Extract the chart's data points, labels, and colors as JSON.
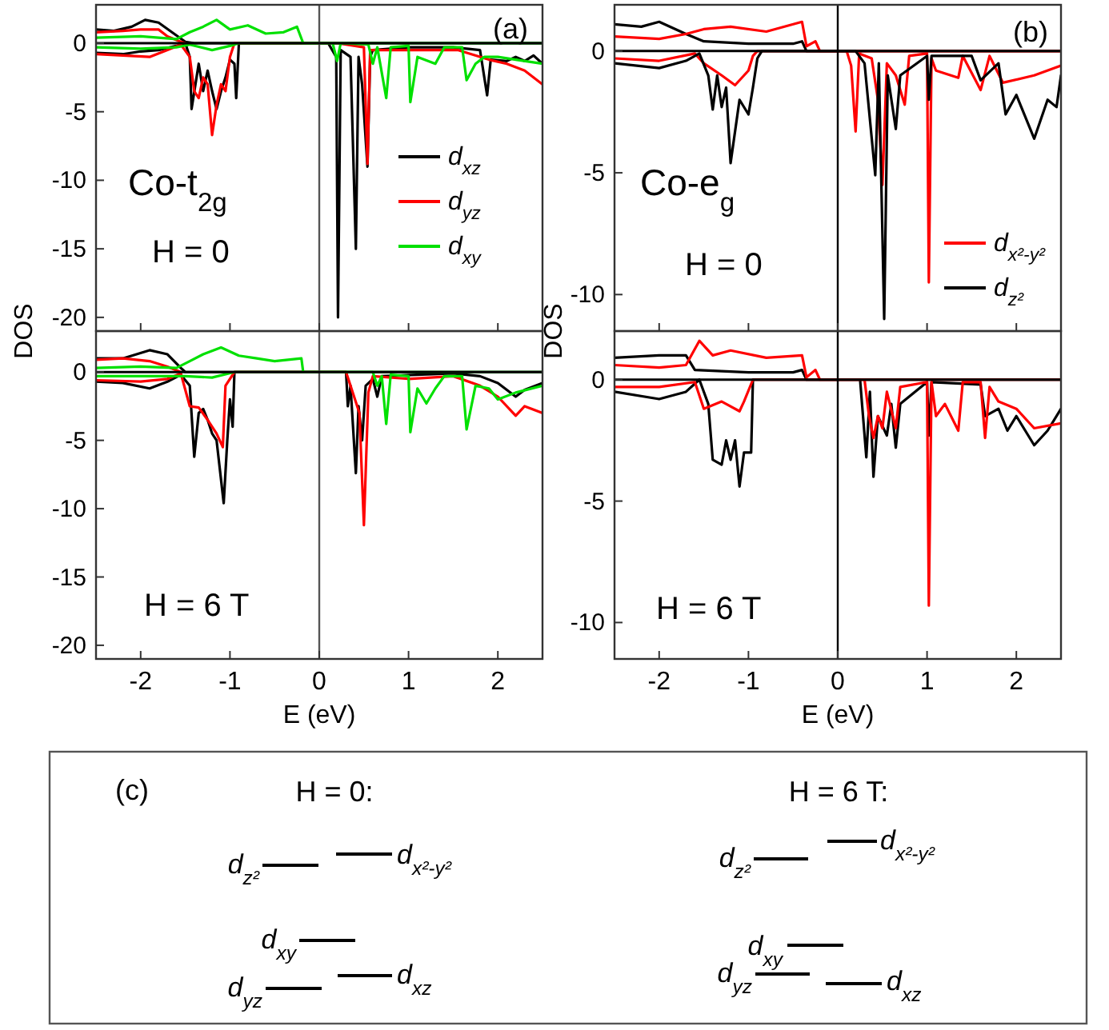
{
  "chart_data": [
    {
      "type": "line",
      "ylabel": "DOS",
      "xlim": [
        -2.5,
        2.5
      ],
      "ylim": [
        -21,
        2.8
      ],
      "xticks": [
        -2,
        -1,
        0,
        1,
        2
      ],
      "yticks": [
        -20,
        -15,
        -10,
        -5,
        0
      ],
      "tick_labels": "y",
      "legend": "right",
      "annotations": [
        "(a)",
        "Co-t$_{2g}$",
        "H = 0"
      ],
      "ref_lines": [
        {
          "axis": "x",
          "value": 0,
          "color": "#555555"
        },
        {
          "axis": "y",
          "value": 0,
          "color": "#000000"
        }
      ],
      "series": [
        {
          "color": "#000000",
          "x": [
            -2.5,
            -2.3,
            -2.1,
            -1.95,
            -1.8,
            -1.65,
            -1.5,
            -1.4,
            2.5
          ],
          "values": [
            1.0,
            0.9,
            1.2,
            1.7,
            1.5,
            0.8,
            0.1,
            0,
            0
          ]
        },
        {
          "name": "d$_{xz}$",
          "color": "#000000",
          "x": [
            -2.5,
            -2.2,
            -2.0,
            -1.8,
            -1.6,
            -1.5,
            -1.45,
            -1.43,
            -1.35,
            -1.3,
            -1.25,
            -1.2,
            -1.15,
            -1.1,
            -1.05,
            -1.0,
            -0.95,
            -0.93,
            -0.9,
            0.1,
            0.19,
            0.21,
            0.24,
            0.35,
            0.41,
            0.44,
            0.48,
            0.54,
            0.57,
            0.6,
            1.0,
            1.5,
            1.8,
            1.88,
            1.92,
            2.1,
            2.2,
            2.3,
            2.4,
            2.5
          ],
          "values": [
            -0.7,
            -0.8,
            -0.6,
            -0.5,
            -0.2,
            0,
            -1,
            -4.8,
            -1.5,
            -3.5,
            -2,
            -3.5,
            -4.8,
            -3.5,
            -2.5,
            -1.2,
            -1.5,
            -4,
            0,
            0,
            -1,
            -20,
            -0.5,
            -1,
            -15,
            -1,
            -3,
            -9,
            -1,
            -0.5,
            -0.3,
            -0.3,
            -0.5,
            -3.8,
            -1.2,
            -1.3,
            -1.0,
            -1.3,
            -0.9,
            -1.5
          ]
        },
        {
          "color": "#ff0000",
          "x": [
            -2.5,
            -2.2,
            -2.0,
            -1.8,
            -1.7,
            -1.55,
            -1.5
          ],
          "values": [
            0.8,
            0.9,
            1.0,
            1.0,
            0.5,
            0.1,
            0
          ]
        },
        {
          "name": "d$_{yz}$",
          "color": "#ff0000",
          "x": [
            -2.5,
            -2.2,
            -1.9,
            -1.7,
            -1.55,
            -1.45,
            -1.4,
            -1.35,
            -1.3,
            -1.25,
            -1.2,
            -1.15,
            -1.1,
            -1.05,
            -1.0,
            -0.95,
            0.2,
            0.5,
            0.54,
            0.57,
            0.7,
            1.0,
            1.55,
            1.9,
            2.1,
            2.3,
            2.5
          ],
          "values": [
            -0.8,
            -0.9,
            -1.0,
            -0.5,
            -0.1,
            -1,
            -3.5,
            -4,
            -2.5,
            -3,
            -6.7,
            -4.5,
            -3,
            -3.5,
            -1,
            0,
            0,
            -0.3,
            -8.8,
            -0.5,
            -0.5,
            -0.5,
            -0.5,
            -1.2,
            -1.5,
            -2.0,
            -3.0
          ]
        },
        {
          "color": "#00e000",
          "x": [
            -2.5,
            -2.0,
            -1.6,
            -1.45,
            -1.3,
            -1.15,
            -1.0,
            -0.8,
            -0.6,
            -0.4,
            -0.25,
            -0.18,
            2.5
          ],
          "values": [
            0.4,
            0.5,
            0.3,
            0.8,
            1.2,
            1.7,
            1.0,
            1.3,
            0.7,
            0.8,
            1.2,
            0,
            0
          ]
        },
        {
          "name": "d$_{xy}$",
          "color": "#00e000",
          "x": [
            -2.5,
            -2.0,
            -1.6,
            -1.45,
            -1.2,
            -1.0,
            -0.9,
            0.15,
            0.2,
            0.24,
            0.55,
            0.6,
            0.65,
            0.75,
            0.8,
            1.0,
            1.02,
            1.1,
            1.3,
            1.4,
            1.6,
            1.65,
            1.75,
            1.85,
            2.0,
            2.2,
            2.5
          ],
          "values": [
            -0.3,
            -0.4,
            -0.3,
            -0.1,
            -0.5,
            -0.2,
            0,
            0,
            -1.3,
            0,
            -0.1,
            -1.5,
            -0.3,
            -4,
            -0.3,
            -0.2,
            -4.3,
            -1,
            -1.5,
            -0.3,
            -0.3,
            -2.7,
            -1.5,
            -1,
            -1,
            -1.2,
            -1.5
          ]
        }
      ]
    },
    {
      "type": "line",
      "xlabel": "E (eV)",
      "xlim": [
        -2.5,
        2.5
      ],
      "ylim": [
        -21,
        3
      ],
      "xticks": [
        -2,
        -1,
        0,
        1,
        2
      ],
      "yticks": [
        -20,
        -15,
        -10,
        -5,
        0
      ],
      "annotations": [
        "H = 6 T"
      ],
      "ref_lines": [
        {
          "axis": "x",
          "value": 0,
          "color": "#555555"
        },
        {
          "axis": "y",
          "value": 0,
          "color": "#000000"
        }
      ],
      "series": [
        {
          "color": "#000000",
          "x": [
            -2.5,
            -2.2,
            -1.9,
            -1.7,
            -1.55,
            -1.5,
            2.5
          ],
          "values": [
            1.0,
            1.0,
            1.6,
            1.3,
            0.3,
            0,
            0
          ]
        },
        {
          "color": "#000000",
          "x": [
            -2.5,
            -2.2,
            -1.9,
            -1.7,
            -1.55,
            -1.45,
            -1.4,
            -1.35,
            -1.3,
            -1.25,
            -1.2,
            -1.15,
            -1.07,
            -1.03,
            -1.0,
            -0.97,
            -0.95,
            0.3,
            0.32,
            0.35,
            0.41,
            0.44,
            0.48,
            0.52,
            0.6,
            0.65,
            0.7,
            1.5,
            1.8,
            2.0,
            2.2,
            2.3,
            2.5
          ],
          "values": [
            -0.7,
            -0.8,
            -1.2,
            -0.7,
            -0.2,
            -1,
            -6.2,
            -3,
            -2.7,
            -3.5,
            -4.5,
            -5,
            -9.6,
            -5,
            -2,
            -4,
            0,
            0,
            -2.5,
            -1,
            -7.4,
            -2.5,
            -5,
            -1,
            -0.5,
            -1.8,
            -0.3,
            -0.1,
            -0.3,
            -0.8,
            -1.8,
            -1.3,
            -0.8
          ]
        },
        {
          "color": "#ff0000",
          "x": [
            -2.5,
            -2.2,
            -1.9,
            -1.7,
            -1.55
          ],
          "values": [
            0.9,
            1.0,
            0.8,
            0.4,
            0
          ]
        },
        {
          "color": "#ff0000",
          "x": [
            -2.5,
            -2.0,
            -1.7,
            -1.55,
            -1.45,
            -1.35,
            -1.25,
            -1.15,
            -1.08,
            -1.05,
            -0.95,
            0.3,
            0.35,
            0.45,
            0.5,
            0.55,
            0.6,
            1.0,
            1.5,
            1.8,
            2.0,
            2.2,
            2.3,
            2.5
          ],
          "values": [
            -0.6,
            -0.7,
            -0.5,
            -0.1,
            -2.5,
            -2.6,
            -3.5,
            -4.5,
            -5.5,
            -1,
            0,
            0,
            -1,
            -3,
            -11.2,
            -1.5,
            -0.3,
            -0.5,
            -0.3,
            -1,
            -1.8,
            -3.2,
            -2.5,
            -3.0
          ]
        },
        {
          "color": "#00e000",
          "x": [
            -2.5,
            -2.0,
            -1.6,
            -1.45,
            -1.3,
            -1.1,
            -0.9,
            -0.7,
            -0.5,
            -0.2,
            -0.18,
            2.5
          ],
          "values": [
            0.3,
            0.4,
            0.3,
            0.8,
            1.3,
            1.8,
            1.2,
            1.0,
            0.8,
            1.0,
            0,
            0
          ]
        },
        {
          "color": "#00e000",
          "x": [
            -2.5,
            -2.0,
            -1.5,
            -1.2,
            -0.95,
            0.6,
            0.65,
            0.7,
            0.75,
            0.8,
            1.0,
            1.02,
            1.1,
            1.2,
            1.3,
            1.4,
            1.6,
            1.65,
            1.75,
            1.9,
            2.0,
            2.2,
            2.5
          ],
          "values": [
            -0.3,
            -0.3,
            -0.3,
            -0.4,
            0,
            0,
            -1,
            -0.3,
            -3.8,
            -0.2,
            -0.3,
            -4.4,
            -1.2,
            -2.3,
            -1.2,
            -0.3,
            -0.3,
            -4.2,
            -1,
            -1.2,
            -2,
            -1.5,
            -1.0
          ]
        }
      ]
    },
    {
      "type": "line",
      "ylabel": "DOS",
      "xlim": [
        -2.5,
        2.5
      ],
      "ylim": [
        -11.5,
        1.9
      ],
      "xticks": [
        -2,
        -1,
        0,
        1,
        2
      ],
      "yticks": [
        -10,
        -5,
        0
      ],
      "tick_labels": "y",
      "legend": "bottom right",
      "annotations": [
        "(b)",
        "Co-e$_{g}$",
        "H = 0"
      ],
      "ref_lines": [
        {
          "axis": "x",
          "value": 0,
          "color": "#000000"
        },
        {
          "axis": "y",
          "value": 0,
          "color": "#000000"
        }
      ],
      "series": [
        {
          "color": "#000000",
          "x": [
            -2.5,
            -2.2,
            -2.0,
            -1.7,
            -1.5,
            -1.0,
            -0.5,
            -0.4,
            -0.35,
            2.5
          ],
          "values": [
            1.1,
            1.0,
            1.2,
            0.7,
            0.4,
            0.3,
            0.3,
            0.4,
            0,
            0
          ]
        },
        {
          "color": "#ff0000",
          "x": [
            -2.5,
            -2.0,
            -1.7,
            -1.5,
            -1.2,
            -0.8,
            -0.4,
            -0.35,
            -0.25,
            -0.2,
            2.5
          ],
          "values": [
            0.6,
            0.5,
            0.7,
            0.9,
            1.0,
            0.8,
            1.2,
            0.2,
            0.4,
            0,
            0
          ]
        },
        {
          "name": "d$_{x²-y²}$",
          "color": "#ff0000",
          "x": [
            -2.5,
            -2.0,
            -1.6,
            -1.5,
            -1.3,
            -1.15,
            -1.0,
            -0.95,
            -0.9,
            0.1,
            0.15,
            0.2,
            0.24,
            0.38,
            0.45,
            0.5,
            0.55,
            0.65,
            0.75,
            0.8,
            1.0,
            1.02,
            1.05,
            1.1,
            1.35,
            1.4,
            1.6,
            1.7,
            1.85,
            2.2,
            2.5
          ],
          "values": [
            -0.3,
            -0.4,
            -0.1,
            -0.5,
            -1,
            -1.4,
            -0.8,
            -0.2,
            0,
            0,
            -0.6,
            -3.3,
            -0.1,
            -0.3,
            -2,
            -5.5,
            -0.5,
            -1,
            -2.2,
            -0.2,
            -0.1,
            -9.5,
            -0.3,
            -0.8,
            -1.1,
            -0.2,
            -1.6,
            -0.2,
            -1.3,
            -1.0,
            -0.6
          ]
        },
        {
          "name": "d$_{z²}$",
          "color": "#000000",
          "x": [
            -2.5,
            -2.0,
            -1.7,
            -1.55,
            -1.45,
            -1.4,
            -1.35,
            -1.3,
            -1.25,
            -1.2,
            -1.1,
            -1.0,
            -0.95,
            -0.9,
            -0.85,
            0.2,
            0.3,
            0.42,
            0.46,
            0.52,
            0.56,
            0.65,
            0.7,
            1.0,
            1.02,
            1.05,
            1.5,
            1.6,
            1.8,
            1.88,
            2.0,
            2.2,
            2.35,
            2.45,
            2.5
          ],
          "values": [
            -0.5,
            -0.7,
            -0.4,
            -0.1,
            -1,
            -2.4,
            -1,
            -2.3,
            -1.5,
            -4.6,
            -2,
            -2.6,
            -1.5,
            -0.3,
            0,
            0,
            -0.5,
            -5.1,
            -0.5,
            -11,
            -1,
            -3.2,
            -1,
            -0.2,
            -2,
            -0.2,
            -0.2,
            -1.2,
            -0.5,
            -2.6,
            -1.8,
            -3.6,
            -2.0,
            -2.3,
            -1.0
          ]
        }
      ]
    },
    {
      "type": "line",
      "xlabel": "E (eV)",
      "xlim": [
        -2.5,
        2.5
      ],
      "ylim": [
        -11.5,
        2
      ],
      "xticks": [
        -2,
        -1,
        0,
        1,
        2
      ],
      "yticks": [
        -10,
        -5,
        0
      ],
      "annotations": [
        "H = 6 T"
      ],
      "ref_lines": [
        {
          "axis": "x",
          "value": 0,
          "color": "#000000"
        },
        {
          "axis": "y",
          "value": 0,
          "color": "#000000"
        }
      ],
      "series": [
        {
          "color": "#000000",
          "x": [
            -2.5,
            -2.0,
            -1.7,
            -1.6,
            -1.0,
            -0.5,
            -0.4,
            -0.35,
            2.5
          ],
          "values": [
            0.9,
            1.0,
            1.0,
            0.4,
            0.3,
            0.3,
            0.4,
            0,
            0
          ]
        },
        {
          "color": "#ff0000",
          "x": [
            -2.5,
            -2.0,
            -1.7,
            -1.55,
            -1.4,
            -1.2,
            -0.8,
            -0.4,
            -0.35,
            -0.25,
            -0.2,
            2.5
          ],
          "values": [
            0.6,
            0.5,
            0.6,
            1.6,
            1.0,
            1.2,
            0.9,
            1.0,
            0.1,
            0.4,
            0,
            0
          ]
        },
        {
          "color": "#000000",
          "x": [
            -2.5,
            -2.0,
            -1.7,
            -1.55,
            -1.45,
            -1.4,
            -1.3,
            -1.25,
            -1.2,
            -1.15,
            -1.1,
            -1.05,
            -0.97,
            -0.95,
            0.25,
            0.32,
            0.36,
            0.4,
            0.45,
            0.55,
            0.6,
            0.65,
            0.7,
            1.0,
            1.02,
            1.05,
            1.6,
            1.65,
            1.8,
            1.9,
            2.0,
            2.2,
            2.35,
            2.5
          ],
          "values": [
            -0.5,
            -0.8,
            -0.5,
            0,
            -1,
            -3.3,
            -3.5,
            -2.5,
            -3.3,
            -2.5,
            -4.4,
            -3,
            -3,
            0,
            0,
            -3.2,
            -0.5,
            -4,
            -1.5,
            -2.3,
            -1,
            -2.8,
            -1,
            -0.1,
            -2.3,
            -0.1,
            -0.2,
            -1.5,
            -1.2,
            -2.1,
            -1.5,
            -2.7,
            -2.1,
            -1.2
          ]
        },
        {
          "color": "#ff0000",
          "x": [
            -2.5,
            -2.0,
            -1.6,
            -1.5,
            -1.3,
            -1.1,
            -1.05,
            -0.95,
            0.3,
            0.35,
            0.4,
            0.45,
            0.5,
            0.55,
            0.65,
            0.7,
            1.0,
            1.02,
            1.05,
            1.1,
            1.2,
            1.35,
            1.4,
            1.6,
            1.65,
            1.7,
            1.8,
            2.0,
            2.2,
            2.5
          ],
          "values": [
            -0.3,
            -0.3,
            -0.1,
            -1.2,
            -0.9,
            -1.3,
            -0.9,
            0,
            0,
            -1.5,
            -2.4,
            -1.5,
            -2,
            -0.5,
            -2,
            -0.3,
            -0.1,
            -9.3,
            -0.1,
            -1.5,
            -1.0,
            -2.1,
            -0.1,
            -0.1,
            -2.4,
            -0.3,
            -0.9,
            -1.2,
            -2.0,
            -1.8
          ]
        }
      ]
    },
    {
      "type": "other",
      "annotations": [
        "(c)",
        "H = 0:",
        "H = 6 T:",
        "d$_{z²}$",
        "d$_{x²-y²}$",
        "d$_{xy}$",
        "d$_{yz}$",
        "d$_{xz}$",
        "d$_{z²}$",
        "d$_{x²-y²}$",
        "d$_{xy}$",
        "d$_{yz}$",
        "d$_{xz}$"
      ]
    }
  ]
}
